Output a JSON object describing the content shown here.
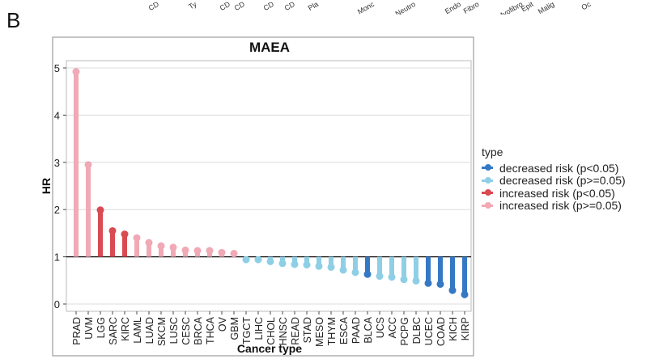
{
  "figure": {
    "panel_letter": "B",
    "top_strip_labels": [
      "CD",
      "Ty",
      "CD",
      "CD",
      "CD",
      "CD",
      "Pla",
      "Monc",
      "Neutro",
      "Endo",
      "Fibro",
      "Myofibro",
      "Epit",
      "Malig",
      "Oc"
    ]
  },
  "chart_data": {
    "type": "lollipop",
    "title": "MAEA",
    "xlabel": "Cancer type",
    "ylabel": "HR",
    "ylim": [
      0,
      5
    ],
    "yticks": [
      0,
      1,
      2,
      3,
      4,
      5
    ],
    "baseline": 1,
    "grid": true,
    "legend_position": "right",
    "legend_title": "type",
    "categories": [
      "PRAD",
      "UVM",
      "LGG",
      "SARC",
      "KIRC",
      "LAML",
      "LUAD",
      "SKCM",
      "LUSC",
      "CESC",
      "BRCA",
      "THCA",
      "OV",
      "GBM",
      "TGCT",
      "LIHC",
      "CHOL",
      "HNSC",
      "READ",
      "STAD",
      "MESO",
      "THYM",
      "ESCA",
      "PAAD",
      "BLCA",
      "UCS",
      "ACC",
      "PCPG",
      "DLBC",
      "UCEC",
      "COAD",
      "KICH",
      "KIRP"
    ],
    "values": [
      4.92,
      2.95,
      1.99,
      1.55,
      1.48,
      1.4,
      1.3,
      1.23,
      1.2,
      1.14,
      1.13,
      1.13,
      1.09,
      1.07,
      0.94,
      0.94,
      0.9,
      0.86,
      0.84,
      0.83,
      0.8,
      0.78,
      0.72,
      0.67,
      0.63,
      0.59,
      0.57,
      0.52,
      0.49,
      0.44,
      0.42,
      0.29,
      0.2
    ],
    "types": [
      "inc_ns",
      "inc_ns",
      "inc_sig",
      "inc_sig",
      "inc_sig",
      "inc_ns",
      "inc_ns",
      "inc_ns",
      "inc_ns",
      "inc_ns",
      "inc_ns",
      "inc_ns",
      "inc_ns",
      "inc_ns",
      "dec_ns",
      "dec_ns",
      "dec_ns",
      "dec_ns",
      "dec_ns",
      "dec_ns",
      "dec_ns",
      "dec_ns",
      "dec_ns",
      "dec_ns",
      "dec_sig",
      "dec_ns",
      "dec_ns",
      "dec_ns",
      "dec_ns",
      "dec_sig",
      "dec_sig",
      "dec_sig",
      "dec_sig"
    ],
    "legend": [
      {
        "key": "dec_sig",
        "label": "decreased risk (p<0.05)",
        "color": "#3579c4"
      },
      {
        "key": "dec_ns",
        "label": "decreased risk (p>=0.05)",
        "color": "#8ecfe6"
      },
      {
        "key": "inc_sig",
        "label": "increased risk (p<0.05)",
        "color": "#d94a52"
      },
      {
        "key": "inc_ns",
        "label": "increased risk (p>=0.05)",
        "color": "#f0a9b5"
      }
    ]
  }
}
